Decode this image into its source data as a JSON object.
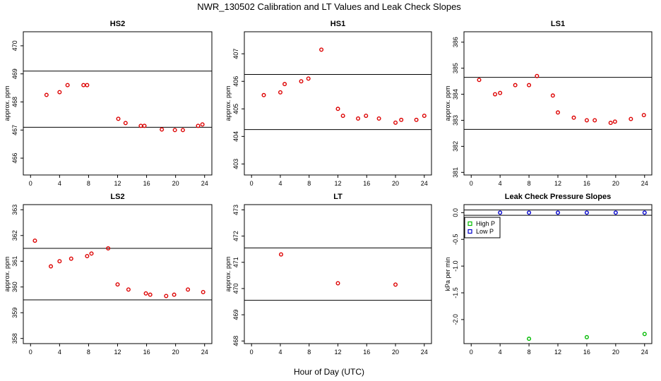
{
  "suptitle": "NWR_130502  Calibration and LT Values and Leak Check Slopes",
  "xlabel": "Hour of Day (UTC)",
  "chart_data": [
    {
      "type": "scatter",
      "title": "HS2",
      "ylabel": "approx. ppm",
      "xlim": [
        -1,
        25
      ],
      "ylim": [
        465.4,
        470.5
      ],
      "xticks": [
        0,
        4,
        8,
        12,
        16,
        20,
        24
      ],
      "yticks": [
        466,
        467,
        468,
        469,
        470
      ],
      "hlines": [
        469.1,
        467.1
      ],
      "color": "#dd0000",
      "points": [
        [
          2.2,
          468.25
        ],
        [
          4.0,
          468.35
        ],
        [
          5.1,
          468.6
        ],
        [
          7.3,
          468.6
        ],
        [
          7.8,
          468.6
        ],
        [
          12.1,
          467.4
        ],
        [
          13.1,
          467.25
        ],
        [
          15.2,
          467.15
        ],
        [
          15.7,
          467.15
        ],
        [
          18.1,
          467.02
        ],
        [
          19.9,
          467.0
        ],
        [
          21.0,
          467.0
        ],
        [
          23.1,
          467.15
        ],
        [
          23.7,
          467.2
        ]
      ]
    },
    {
      "type": "scatter",
      "title": "HS1",
      "ylabel": "approx. ppm",
      "xlim": [
        -1,
        25
      ],
      "ylim": [
        402.6,
        407.8
      ],
      "xticks": [
        0,
        4,
        8,
        12,
        16,
        20,
        24
      ],
      "yticks": [
        403,
        404,
        405,
        406,
        407
      ],
      "hlines": [
        406.25,
        404.25
      ],
      "color": "#dd0000",
      "points": [
        [
          1.7,
          405.5
        ],
        [
          4.0,
          405.6
        ],
        [
          4.6,
          405.9
        ],
        [
          6.9,
          406.0
        ],
        [
          7.9,
          406.1
        ],
        [
          9.7,
          407.15
        ],
        [
          12.0,
          405.0
        ],
        [
          12.7,
          404.75
        ],
        [
          14.8,
          404.65
        ],
        [
          15.9,
          404.75
        ],
        [
          17.7,
          404.65
        ],
        [
          20.0,
          404.5
        ],
        [
          20.8,
          404.6
        ],
        [
          22.9,
          404.6
        ],
        [
          24.0,
          404.75
        ]
      ]
    },
    {
      "type": "scatter",
      "title": "LS1",
      "ylabel": "approx. ppm",
      "xlim": [
        -1,
        25
      ],
      "ylim": [
        380.9,
        386.4
      ],
      "xticks": [
        0,
        4,
        8,
        12,
        16,
        20,
        24
      ],
      "yticks": [
        381,
        382,
        383,
        384,
        385,
        386
      ],
      "hlines": [
        384.65,
        382.65
      ],
      "color": "#dd0000",
      "points": [
        [
          1.1,
          384.55
        ],
        [
          3.3,
          384.0
        ],
        [
          4.0,
          384.05
        ],
        [
          6.1,
          384.35
        ],
        [
          8.0,
          384.35
        ],
        [
          9.1,
          384.7
        ],
        [
          11.3,
          383.95
        ],
        [
          12.0,
          383.3
        ],
        [
          14.2,
          383.1
        ],
        [
          16.0,
          383.0
        ],
        [
          17.1,
          383.0
        ],
        [
          19.3,
          382.9
        ],
        [
          19.9,
          382.95
        ],
        [
          22.1,
          383.05
        ],
        [
          23.9,
          383.2
        ]
      ]
    },
    {
      "type": "scatter",
      "title": "LS2",
      "ylabel": "approx. ppm",
      "xlim": [
        -1,
        25
      ],
      "ylim": [
        357.8,
        363.2
      ],
      "xticks": [
        0,
        4,
        8,
        12,
        16,
        20,
        24
      ],
      "yticks": [
        358,
        359,
        360,
        361,
        362,
        363
      ],
      "hlines": [
        361.5,
        359.5
      ],
      "color": "#dd0000",
      "points": [
        [
          0.6,
          361.8
        ],
        [
          2.8,
          360.8
        ],
        [
          4.0,
          361.0
        ],
        [
          5.6,
          361.1
        ],
        [
          7.8,
          361.2
        ],
        [
          8.4,
          361.3
        ],
        [
          10.7,
          361.5
        ],
        [
          12.0,
          360.1
        ],
        [
          13.5,
          359.9
        ],
        [
          15.9,
          359.75
        ],
        [
          16.5,
          359.7
        ],
        [
          18.7,
          359.65
        ],
        [
          19.8,
          359.7
        ],
        [
          21.7,
          359.9
        ],
        [
          23.8,
          359.8
        ]
      ]
    },
    {
      "type": "scatter",
      "title": "LT",
      "ylabel": "approx. ppm",
      "xlim": [
        -1,
        25
      ],
      "ylim": [
        467.9,
        473.2
      ],
      "xticks": [
        0,
        4,
        8,
        12,
        16,
        20,
        24
      ],
      "yticks": [
        468,
        469,
        470,
        471,
        472,
        473
      ],
      "hlines": [
        471.55,
        469.55
      ],
      "color": "#dd0000",
      "points": [
        [
          4.1,
          471.3
        ],
        [
          12.0,
          470.2
        ],
        [
          20.0,
          470.15
        ]
      ]
    },
    {
      "type": "scatter",
      "title": "Leak Check Pressure Slopes",
      "ylabel": "kPa per min",
      "xlim": [
        -1,
        25
      ],
      "ylim": [
        -2.45,
        0.15
      ],
      "xticks": [
        0,
        4,
        8,
        12,
        16,
        20,
        24
      ],
      "yticks": [
        -2.0,
        -1.5,
        -1.0,
        -0.5,
        0.0
      ],
      "ytick_labels": [
        "-2.0",
        "-1.5",
        "-1.0",
        "-0.5",
        "0.0"
      ],
      "hlines": [
        0.05,
        -0.05
      ],
      "series": [
        {
          "name": "High P",
          "color": "#00bb00",
          "points": [
            [
              8.0,
              -2.36
            ],
            [
              16.0,
              -2.33
            ],
            [
              24.0,
              -2.27
            ]
          ]
        },
        {
          "name": "Low P",
          "color": "#0000cc",
          "points": [
            [
              4.0,
              0.0
            ],
            [
              8.0,
              0.0
            ],
            [
              12.0,
              0.0
            ],
            [
              16.0,
              0.0
            ],
            [
              20.0,
              0.0
            ],
            [
              24.0,
              0.0
            ]
          ]
        }
      ],
      "legend": "top-left"
    }
  ]
}
